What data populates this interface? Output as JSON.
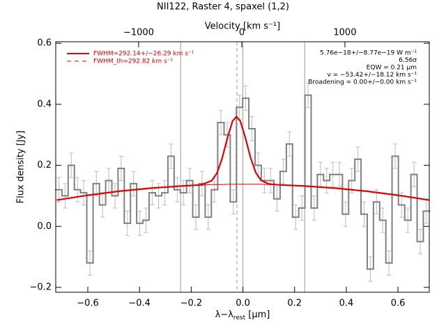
{
  "chart_data": {
    "type": "step",
    "title": "NII122, Raster 4, spaxel (1,2)",
    "xlabel": "λ−λ",
    "xlabel_sub": "rest",
    "xlabel_unit": " [μm]",
    "ylabel": "Flux density [Jy]",
    "x2label": "Velocity [km s⁻¹]",
    "xlim": [
      -0.724,
      0.721
    ],
    "ylim": [
      -0.216,
      0.605
    ],
    "x2lim": [
      -1804,
      1818
    ],
    "xticks": [
      {
        "value": -0.6,
        "label": "−0.6"
      },
      {
        "value": -0.4,
        "label": "−0.4"
      },
      {
        "value": -0.2,
        "label": "−0.2"
      },
      {
        "value": 0,
        "label": "0.0"
      },
      0.2,
      0.4,
      0.6
    ],
    "yticks": [
      {
        "value": -0.2,
        "label": "−0.2"
      },
      {
        "value": 0,
        "label": "0.0"
      },
      0.2,
      0.4,
      0.6
    ],
    "x2ticks": [
      {
        "value": -1000,
        "label": "−1000"
      },
      0,
      1000
    ],
    "x": [
      -0.712,
      -0.688,
      -0.664,
      -0.64,
      -0.616,
      -0.592,
      -0.567,
      -0.543,
      -0.519,
      -0.495,
      -0.471,
      -0.447,
      -0.423,
      -0.399,
      -0.375,
      -0.351,
      -0.326,
      -0.302,
      -0.278,
      -0.254,
      -0.23,
      -0.206,
      -0.182,
      -0.158,
      -0.134,
      -0.11,
      -0.085,
      -0.061,
      -0.037,
      -0.013,
      0.011,
      0.035,
      0.059,
      0.083,
      0.107,
      0.132,
      0.156,
      0.18,
      0.204,
      0.228,
      0.252,
      0.276,
      0.3,
      0.324,
      0.348,
      0.373,
      0.397,
      0.421,
      0.445,
      0.469,
      0.493,
      0.517,
      0.541,
      0.565,
      0.589,
      0.614,
      0.638,
      0.662,
      0.686,
      0.71
    ],
    "values": [
      0.12,
      0.1,
      0.2,
      0.12,
      0.11,
      -0.12,
      0.14,
      0.07,
      0.15,
      0.1,
      0.19,
      0.01,
      0.14,
      0.01,
      0.02,
      0.11,
      0.1,
      0.11,
      0.23,
      0.12,
      0.11,
      0.15,
      0.03,
      0.14,
      0.03,
      0.12,
      0.34,
      0.3,
      0.08,
      0.39,
      0.42,
      0.32,
      0.2,
      0.15,
      0.15,
      0.09,
      0.18,
      0.27,
      0.03,
      0.06,
      0.43,
      0.06,
      0.17,
      0.15,
      0.17,
      0.17,
      0.04,
      0.15,
      0.22,
      0.04,
      -0.14,
      0.08,
      0.02,
      -0.12,
      0.23,
      0.07,
      0.02,
      0.17,
      -0.05,
      0.05
    ],
    "errors": [
      0.04,
      0.04,
      0.04,
      0.04,
      0.04,
      0.04,
      0.04,
      0.04,
      0.04,
      0.04,
      0.04,
      0.04,
      0.04,
      0.04,
      0.04,
      0.04,
      0.04,
      0.04,
      0.04,
      0.04,
      0.04,
      0.04,
      0.04,
      0.04,
      0.04,
      0.04,
      0.04,
      0.04,
      0.04,
      0.04,
      0.04,
      0.04,
      0.04,
      0.04,
      0.04,
      0.04,
      0.04,
      0.04,
      0.04,
      0.04,
      0.04,
      0.04,
      0.04,
      0.04,
      0.04,
      0.04,
      0.04,
      0.04,
      0.04,
      0.04,
      0.04,
      0.04,
      0.04,
      0.04,
      0.04,
      0.04,
      0.04,
      0.04,
      0.04,
      0.04
    ],
    "color": "#808080",
    "error_color": "#bbbbbb",
    "fit": {
      "color": "#e00000",
      "x": [
        -0.72,
        -0.6,
        -0.48,
        -0.36,
        -0.24,
        -0.16,
        -0.12,
        -0.1,
        -0.08,
        -0.06,
        -0.04,
        -0.025,
        -0.01,
        0.01,
        0.03,
        0.05,
        0.07,
        0.1,
        0.14,
        0.24,
        0.36,
        0.48,
        0.6,
        0.72
      ],
      "values": [
        0.086,
        0.102,
        0.115,
        0.125,
        0.132,
        0.136,
        0.15,
        0.175,
        0.224,
        0.289,
        0.345,
        0.36,
        0.345,
        0.289,
        0.224,
        0.176,
        0.151,
        0.139,
        0.136,
        0.132,
        0.125,
        0.115,
        0.102,
        0.086
      ],
      "continuum": [
        0.086,
        0.102,
        0.115,
        0.125,
        0.132,
        0.135,
        0.137,
        0.137,
        0.137,
        0.138,
        0.138,
        0.138,
        0.138,
        0.138,
        0.138,
        0.138,
        0.138,
        0.137,
        0.136,
        0.132,
        0.125,
        0.115,
        0.102,
        0.086
      ]
    },
    "vlines": [
      {
        "x": -0.241,
        "dash": false
      },
      {
        "x": 0,
        "dash": false
      },
      {
        "x": -0.023,
        "dash": true
      },
      {
        "x": 0.239,
        "dash": false
      }
    ],
    "legend": [
      {
        "label": "FWHM=292.14+/−26.29 km s⁻¹",
        "dash": false
      },
      {
        "label": "FWHM_th=292.82 km s⁻¹",
        "dash": true
      }
    ],
    "annotations": [
      "5.76e−18+/−8.77e−19 W m⁻²",
      "6.56σ",
      "EQW = 0.21 μm",
      "v = −53.42+/−18.12 km s⁻¹",
      "Broadening = 0.00+/−0.00 km s⁻¹"
    ]
  }
}
